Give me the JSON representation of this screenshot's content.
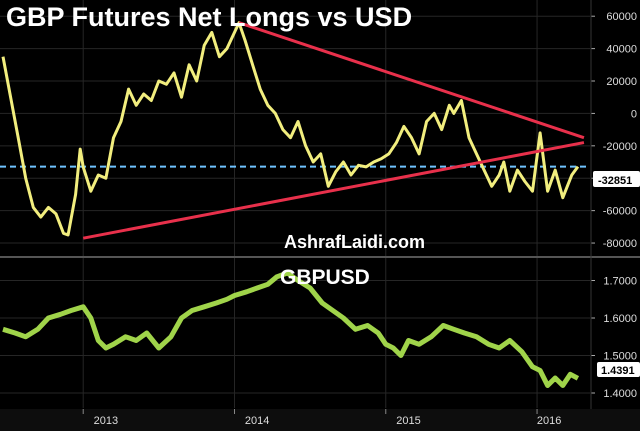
{
  "chart_data": [
    {
      "type": "line",
      "title": "GBP Futures Net Longs vs USD",
      "watermark": "AshrafLaidi.com",
      "ylim": [
        -88000,
        70000
      ],
      "yticks": [
        60000,
        40000,
        20000,
        0,
        -20000,
        -40000,
        -60000,
        -80000
      ],
      "ytick_labels": [
        "60000",
        "40000",
        "20000",
        "0",
        "-20000",
        "-40000",
        "-60000",
        "-80000"
      ],
      "last_value_label": "-32851",
      "reference_level": -32851,
      "colors": {
        "series": "#f2ee7e",
        "trendline": "#e8304b",
        "reference": "#6fc3ff",
        "last_label_bg": "#ffffff"
      },
      "x": [
        2012.47,
        2012.52,
        2012.57,
        2012.62,
        2012.67,
        2012.72,
        2012.77,
        2012.82,
        2012.87,
        2012.9,
        2012.95,
        2012.98,
        2013.0,
        2013.05,
        2013.1,
        2013.15,
        2013.2,
        2013.25,
        2013.3,
        2013.35,
        2013.4,
        2013.45,
        2013.5,
        2013.55,
        2013.6,
        2013.65,
        2013.7,
        2013.75,
        2013.8,
        2013.85,
        2013.9,
        2013.95,
        2014.0,
        2014.03,
        2014.07,
        2014.12,
        2014.17,
        2014.22,
        2014.27,
        2014.32,
        2014.37,
        2014.42,
        2014.47,
        2014.52,
        2014.57,
        2014.62,
        2014.67,
        2014.72,
        2014.77,
        2014.82,
        2014.87,
        2014.92,
        2014.97,
        2015.02,
        2015.07,
        2015.12,
        2015.17,
        2015.22,
        2015.27,
        2015.32,
        2015.37,
        2015.42,
        2015.45,
        2015.5,
        2015.55,
        2015.6,
        2015.65,
        2015.7,
        2015.75,
        2015.78,
        2015.82,
        2015.87,
        2015.92,
        2015.97,
        2016.02,
        2016.07,
        2016.12,
        2016.17,
        2016.2,
        2016.23,
        2016.27
      ],
      "values": [
        35000,
        10000,
        -15000,
        -40000,
        -58000,
        -64000,
        -58000,
        -62000,
        -74000,
        -75000,
        -50000,
        -22000,
        -33000,
        -48000,
        -38000,
        -40000,
        -15000,
        -5000,
        15000,
        5000,
        12000,
        8000,
        20000,
        18000,
        25000,
        10000,
        30000,
        20000,
        42000,
        50000,
        35000,
        40000,
        50000,
        56000,
        45000,
        30000,
        15000,
        5000,
        0,
        -10000,
        -15000,
        -5000,
        -20000,
        -30000,
        -25000,
        -45000,
        -36000,
        -30000,
        -38000,
        -32000,
        -33000,
        -30000,
        -28000,
        -25000,
        -18000,
        -8000,
        -15000,
        -25000,
        -5000,
        0,
        -10000,
        5000,
        0,
        8000,
        -15000,
        -25000,
        -35000,
        -45000,
        -38000,
        -30000,
        -48000,
        -35000,
        -42000,
        -48000,
        -12000,
        -48000,
        -35000,
        -52000,
        -45000,
        -38000,
        -32851
      ]
    },
    {
      "type": "line",
      "title": "GBPUSD",
      "ylim": [
        1.36,
        1.76
      ],
      "yticks": [
        1.7,
        1.6,
        1.5,
        1.4
      ],
      "ytick_labels": [
        "1.7000",
        "1.6000",
        "1.5000",
        "1.4000"
      ],
      "last_value_label": "1.4391",
      "colors": {
        "series": "#a0d44a",
        "last_label_bg": "#ffffff"
      },
      "x": [
        2012.47,
        2012.55,
        2012.62,
        2012.7,
        2012.77,
        2012.85,
        2012.92,
        2013.0,
        2013.05,
        2013.1,
        2013.15,
        2013.2,
        2013.28,
        2013.35,
        2013.42,
        2013.5,
        2013.58,
        2013.65,
        2013.72,
        2013.8,
        2013.88,
        2013.95,
        2014.0,
        2014.08,
        2014.15,
        2014.22,
        2014.28,
        2014.35,
        2014.42,
        2014.5,
        2014.58,
        2014.65,
        2014.72,
        2014.8,
        2014.88,
        2014.95,
        2015.0,
        2015.05,
        2015.1,
        2015.15,
        2015.22,
        2015.3,
        2015.38,
        2015.45,
        2015.52,
        2015.6,
        2015.68,
        2015.75,
        2015.82,
        2015.9,
        2015.97,
        2016.02,
        2016.07,
        2016.12,
        2016.17,
        2016.22,
        2016.27
      ],
      "values": [
        1.57,
        1.56,
        1.55,
        1.57,
        1.6,
        1.61,
        1.62,
        1.63,
        1.6,
        1.54,
        1.52,
        1.53,
        1.55,
        1.54,
        1.56,
        1.52,
        1.55,
        1.6,
        1.62,
        1.63,
        1.64,
        1.65,
        1.66,
        1.67,
        1.68,
        1.69,
        1.71,
        1.72,
        1.7,
        1.68,
        1.64,
        1.62,
        1.6,
        1.57,
        1.58,
        1.56,
        1.53,
        1.52,
        1.5,
        1.54,
        1.53,
        1.55,
        1.58,
        1.57,
        1.56,
        1.55,
        1.53,
        1.52,
        1.54,
        1.51,
        1.47,
        1.46,
        1.42,
        1.44,
        1.42,
        1.45,
        1.4391
      ]
    }
  ],
  "time_axis": {
    "range": [
      2012.45,
      2016.35
    ],
    "ticks": [
      2013.0,
      2014.0,
      2015.0,
      2016.0
    ],
    "tick_labels": [
      "2013",
      "2014",
      "2015",
      "2016"
    ],
    "label_positions": [
      2013.15,
      2014.15,
      2015.15,
      2016.08
    ]
  },
  "trendlines": {
    "upper": {
      "x": [
        2014.03,
        2016.31
      ],
      "y": [
        56000,
        -15000
      ]
    },
    "lower": {
      "x": [
        2013.0,
        2016.31
      ],
      "y": [
        -77000,
        -18000
      ]
    }
  }
}
